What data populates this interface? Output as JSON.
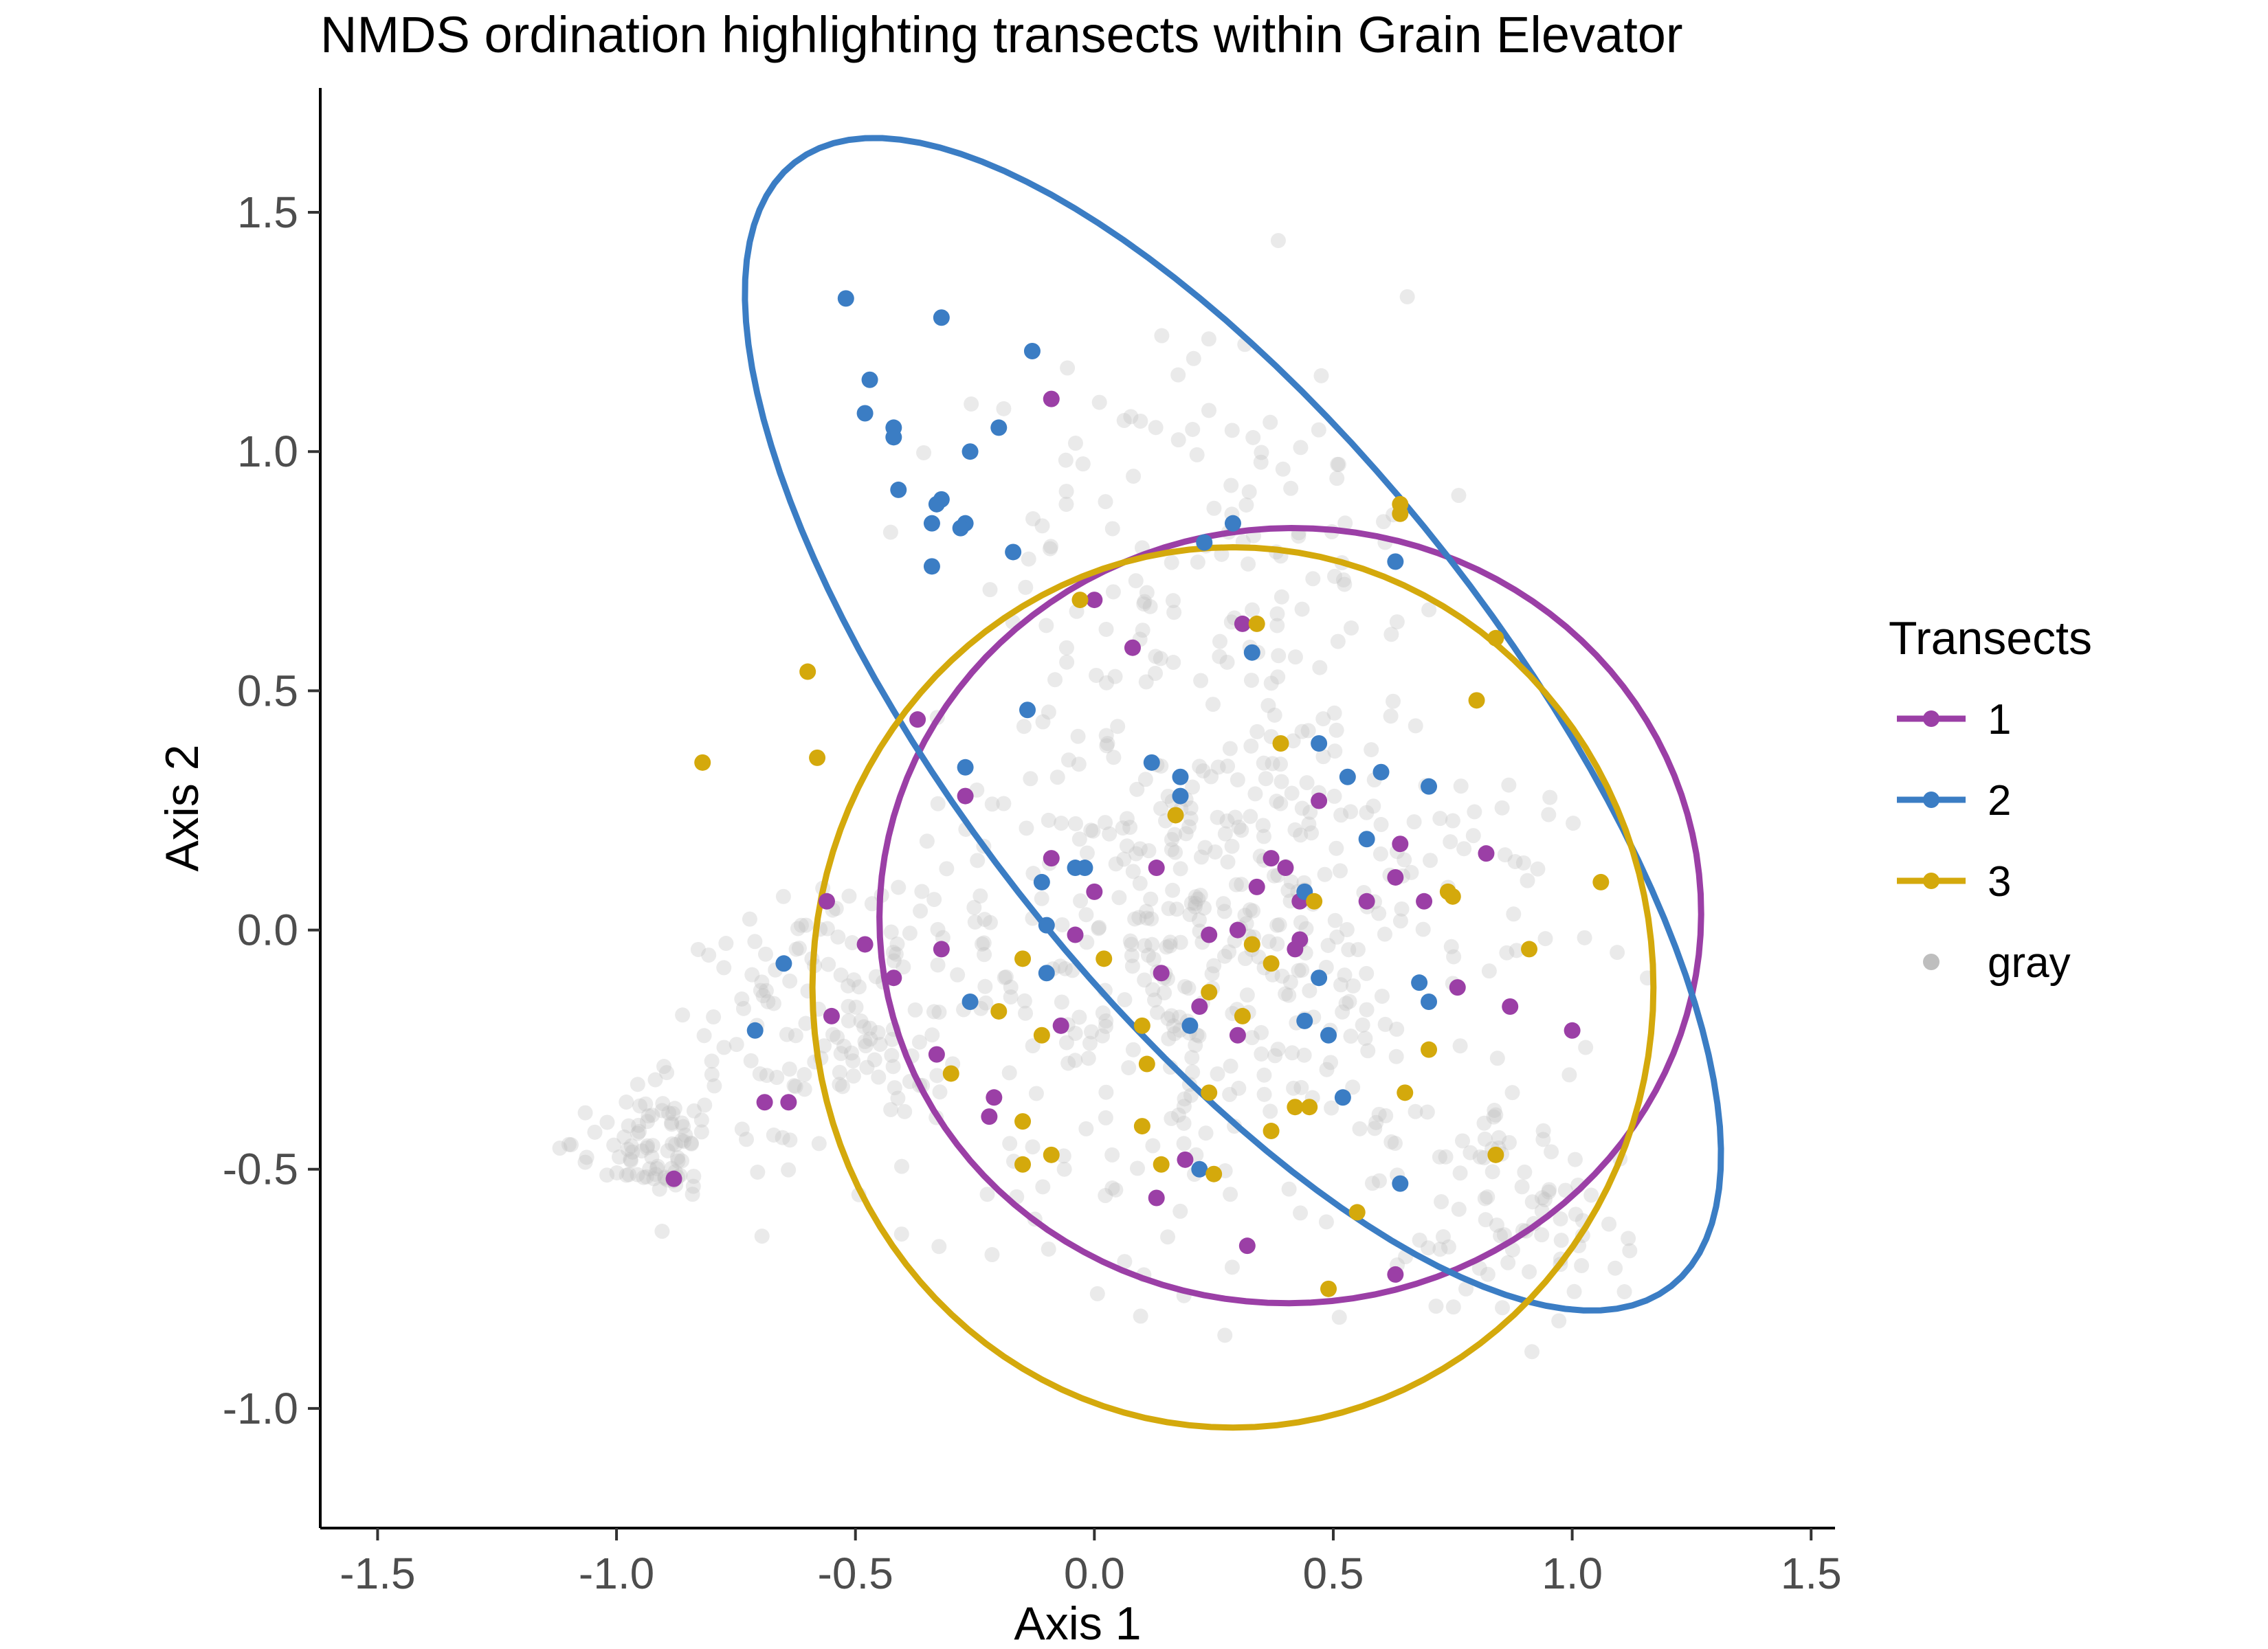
{
  "chart_data": {
    "type": "scatter",
    "title": "NMDS ordination highlighting transects within Grain Elevator",
    "xlabel": "Axis 1",
    "ylabel": "Axis 2",
    "xlim": [
      -1.62,
      1.55
    ],
    "ylim": [
      -1.25,
      1.76
    ],
    "xticks": [
      -1.5,
      -1.0,
      -0.5,
      0.0,
      0.5,
      1.0,
      1.5
    ],
    "xtick_labels": [
      "-1.5",
      "-1.0",
      "-0.5",
      "0.0",
      "0.5",
      "1.0",
      "1.5"
    ],
    "yticks": [
      -1.0,
      -0.5,
      0.0,
      0.5,
      1.0,
      1.5
    ],
    "ytick_labels": [
      "-1.0",
      "-0.5",
      "0.0",
      "0.5",
      "1.0",
      "1.5"
    ],
    "grid": false,
    "legend": {
      "title": "Transects",
      "position": "right",
      "entries": [
        "1",
        "2",
        "3",
        "gray"
      ]
    },
    "series": [
      {
        "name": "1",
        "color": "#9B3FA6",
        "points": [
          [
            -0.09,
            1.11
          ],
          [
            0.0,
            0.69
          ],
          [
            0.31,
            0.64
          ],
          [
            0.08,
            0.59
          ],
          [
            -0.37,
            0.44
          ],
          [
            -0.27,
            0.28
          ],
          [
            0.47,
            0.27
          ],
          [
            0.64,
            0.18
          ],
          [
            0.82,
            0.16
          ],
          [
            0.37,
            0.15
          ],
          [
            0.4,
            0.13
          ],
          [
            -0.09,
            0.15
          ],
          [
            0.13,
            0.13
          ],
          [
            0.63,
            0.11
          ],
          [
            0.34,
            0.09
          ],
          [
            0.0,
            0.08
          ],
          [
            0.57,
            0.06
          ],
          [
            -0.56,
            0.06
          ],
          [
            0.69,
            0.06
          ],
          [
            0.43,
            0.06
          ],
          [
            0.3,
            0.0
          ],
          [
            0.24,
            -0.01
          ],
          [
            -0.04,
            -0.01
          ],
          [
            -0.48,
            -0.03
          ],
          [
            0.43,
            -0.02
          ],
          [
            0.42,
            -0.04
          ],
          [
            -0.32,
            -0.04
          ],
          [
            -0.42,
            -0.1
          ],
          [
            0.14,
            -0.09
          ],
          [
            0.76,
            -0.12
          ],
          [
            0.22,
            -0.16
          ],
          [
            -0.55,
            -0.18
          ],
          [
            0.87,
            -0.16
          ],
          [
            -0.07,
            -0.2
          ],
          [
            1.0,
            -0.21
          ],
          [
            0.3,
            -0.22
          ],
          [
            -0.33,
            -0.26
          ],
          [
            -0.69,
            -0.36
          ],
          [
            -0.64,
            -0.36
          ],
          [
            -0.21,
            -0.35
          ],
          [
            -0.22,
            -0.39
          ],
          [
            0.19,
            -0.48
          ],
          [
            -0.88,
            -0.52
          ],
          [
            0.13,
            -0.56
          ],
          [
            0.32,
            -0.66
          ],
          [
            0.63,
            -0.72
          ]
        ]
      },
      {
        "name": "2",
        "color": "#3B7DC4",
        "points": [
          [
            -0.52,
            1.32
          ],
          [
            -0.32,
            1.28
          ],
          [
            -0.13,
            1.21
          ],
          [
            -0.47,
            1.15
          ],
          [
            -0.48,
            1.08
          ],
          [
            -0.42,
            1.05
          ],
          [
            -0.42,
            1.03
          ],
          [
            -0.2,
            1.05
          ],
          [
            -0.26,
            1.0
          ],
          [
            -0.41,
            0.92
          ],
          [
            -0.32,
            0.9
          ],
          [
            -0.33,
            0.89
          ],
          [
            -0.34,
            0.85
          ],
          [
            -0.27,
            0.85
          ],
          [
            -0.28,
            0.84
          ],
          [
            -0.17,
            0.79
          ],
          [
            0.23,
            0.81
          ],
          [
            0.29,
            0.85
          ],
          [
            -0.34,
            0.76
          ],
          [
            0.63,
            0.77
          ],
          [
            0.33,
            0.58
          ],
          [
            -0.14,
            0.46
          ],
          [
            0.47,
            0.39
          ],
          [
            0.12,
            0.35
          ],
          [
            -0.27,
            0.34
          ],
          [
            0.18,
            0.32
          ],
          [
            0.53,
            0.32
          ],
          [
            0.6,
            0.33
          ],
          [
            0.7,
            0.3
          ],
          [
            0.18,
            0.28
          ],
          [
            0.57,
            0.19
          ],
          [
            -0.02,
            0.13
          ],
          [
            -0.04,
            0.13
          ],
          [
            -0.11,
            0.1
          ],
          [
            0.44,
            0.08
          ],
          [
            -0.1,
            0.01
          ],
          [
            -0.65,
            -0.07
          ],
          [
            -0.1,
            -0.09
          ],
          [
            0.47,
            -0.1
          ],
          [
            0.68,
            -0.11
          ],
          [
            -0.26,
            -0.15
          ],
          [
            0.7,
            -0.15
          ],
          [
            0.44,
            -0.19
          ],
          [
            0.2,
            -0.2
          ],
          [
            -0.71,
            -0.21
          ],
          [
            0.49,
            -0.22
          ],
          [
            0.52,
            -0.35
          ],
          [
            0.22,
            -0.5
          ],
          [
            0.64,
            -0.53
          ]
        ]
      },
      {
        "name": "3",
        "color": "#D4A90C",
        "points": [
          [
            0.64,
            0.89
          ],
          [
            0.64,
            0.87
          ],
          [
            -0.03,
            0.69
          ],
          [
            0.34,
            0.64
          ],
          [
            0.84,
            0.61
          ],
          [
            -0.6,
            0.54
          ],
          [
            0.8,
            0.48
          ],
          [
            0.39,
            0.39
          ],
          [
            -0.58,
            0.36
          ],
          [
            -0.82,
            0.35
          ],
          [
            0.17,
            0.24
          ],
          [
            1.06,
            0.1
          ],
          [
            0.75,
            0.07
          ],
          [
            0.74,
            0.08
          ],
          [
            0.46,
            0.06
          ],
          [
            0.33,
            -0.03
          ],
          [
            0.91,
            -0.04
          ],
          [
            -0.15,
            -0.06
          ],
          [
            0.02,
            -0.06
          ],
          [
            0.37,
            -0.07
          ],
          [
            0.24,
            -0.13
          ],
          [
            -0.2,
            -0.17
          ],
          [
            0.31,
            -0.18
          ],
          [
            0.1,
            -0.2
          ],
          [
            -0.11,
            -0.22
          ],
          [
            0.7,
            -0.25
          ],
          [
            0.11,
            -0.28
          ],
          [
            -0.3,
            -0.3
          ],
          [
            0.65,
            -0.34
          ],
          [
            0.24,
            -0.34
          ],
          [
            0.42,
            -0.37
          ],
          [
            0.45,
            -0.37
          ],
          [
            -0.15,
            -0.4
          ],
          [
            0.1,
            -0.41
          ],
          [
            0.37,
            -0.42
          ],
          [
            0.84,
            -0.47
          ],
          [
            -0.09,
            -0.47
          ],
          [
            -0.15,
            -0.49
          ],
          [
            0.14,
            -0.49
          ],
          [
            0.25,
            -0.51
          ],
          [
            0.55,
            -0.59
          ],
          [
            0.49,
            -0.75
          ]
        ]
      },
      {
        "name": "gray",
        "color": "#BEBEBE",
        "points": []
      }
    ],
    "ellipses": [
      {
        "series": "1",
        "color": "#9B3FA6",
        "cx": 0.41,
        "cy": 0.03,
        "a": 0.86,
        "b": 0.81,
        "rotation_deg": 3
      },
      {
        "series": "2",
        "color": "#3B7DC4",
        "cx": 0.29,
        "cy": 0.43,
        "a": 1.49,
        "b": 0.57,
        "rotation_deg": -52
      },
      {
        "series": "3",
        "color": "#D4A90C",
        "cx": 0.29,
        "cy": -0.12,
        "a": 0.88,
        "b": 0.92,
        "rotation_deg": 0
      }
    ]
  }
}
